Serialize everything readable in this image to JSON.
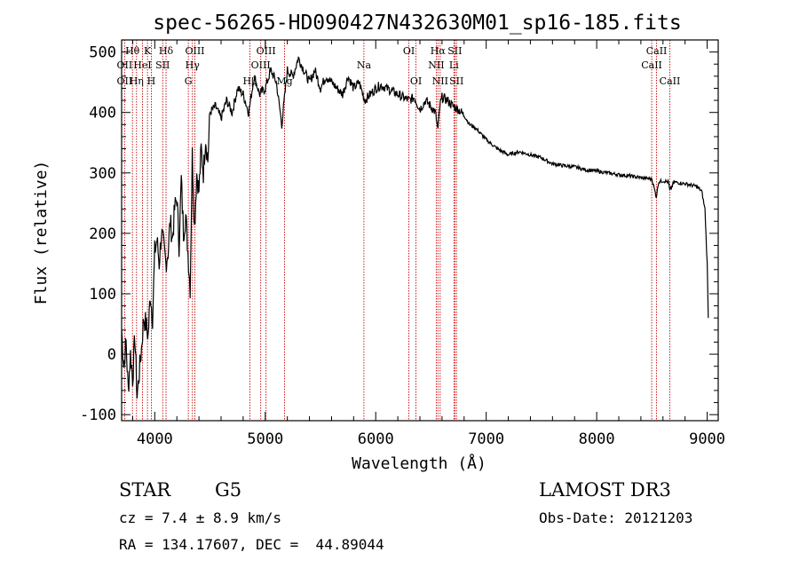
{
  "chart_data": {
    "type": "line",
    "title": "spec-56265-HD090427N432630M01_sp16-185.fits",
    "xlabel": "Wavelength (Å)",
    "ylabel": "Flux (relative)",
    "xlim": [
      3700,
      9100
    ],
    "ylim": [
      -110,
      520
    ],
    "x_ticks": [
      4000,
      5000,
      6000,
      7000,
      8000,
      9000
    ],
    "y_ticks": [
      -100,
      0,
      100,
      200,
      300,
      400,
      500
    ],
    "grid": false,
    "series": [
      {
        "x": [
          3700,
          3720,
          3740,
          3760,
          3780,
          3800,
          3820,
          3840,
          3860,
          3880,
          3900,
          3920,
          3940,
          3960,
          3980,
          4000,
          4020,
          4040,
          4060,
          4080,
          4100,
          4120,
          4140,
          4160,
          4180,
          4200,
          4220,
          4240,
          4260,
          4280,
          4300,
          4320,
          4340,
          4360,
          4380,
          4400,
          4420,
          4440,
          4460,
          4480,
          4500,
          4550,
          4600,
          4650,
          4700,
          4750,
          4800,
          4850,
          4900,
          4950,
          5000,
          5050,
          5100,
          5150,
          5200,
          5250,
          5300,
          5350,
          5400,
          5450,
          5500,
          5550,
          5600,
          5650,
          5700,
          5750,
          5800,
          5850,
          5900,
          5950,
          6000,
          6050,
          6100,
          6150,
          6200,
          6250,
          6300,
          6350,
          6400,
          6450,
          6500,
          6540,
          6563,
          6580,
          6600,
          6650,
          6700,
          6750,
          6800,
          6850,
          6900,
          6950,
          7000,
          7100,
          7200,
          7300,
          7400,
          7500,
          7600,
          7700,
          7800,
          7900,
          8000,
          8100,
          8200,
          8300,
          8400,
          8500,
          8540,
          8560,
          8600,
          8650,
          8662,
          8700,
          8800,
          8900,
          8950,
          8980,
          9000,
          9010
        ],
        "y": [
          40,
          -20,
          20,
          -60,
          0,
          -40,
          30,
          -70,
          -30,
          10,
          60,
          50,
          30,
          100,
          60,
          170,
          190,
          150,
          200,
          180,
          150,
          170,
          220,
          190,
          240,
          260,
          180,
          290,
          200,
          230,
          170,
          110,
          330,
          210,
          300,
          270,
          340,
          300,
          360,
          320,
          400,
          410,
          390,
          420,
          400,
          440,
          430,
          400,
          460,
          430,
          440,
          470,
          450,
          380,
          470,
          460,
          490,
          470,
          450,
          470,
          440,
          460,
          450,
          440,
          430,
          460,
          440,
          450,
          420,
          430,
          440,
          445,
          440,
          435,
          430,
          425,
          420,
          425,
          405,
          420,
          410,
          400,
          370,
          410,
          425,
          420,
          410,
          405,
          395,
          380,
          375,
          365,
          355,
          340,
          330,
          335,
          330,
          325,
          315,
          312,
          310,
          305,
          303,
          300,
          297,
          295,
          292,
          290,
          260,
          285,
          287,
          285,
          270,
          285,
          282,
          278,
          270,
          240,
          150,
          60
        ]
      }
    ],
    "lines": [
      {
        "x": 3727,
        "labels": [
          {
            "text": "OII",
            "row": 2
          },
          {
            "text": "OII",
            "row": 3
          }
        ]
      },
      {
        "x": 3798,
        "labels": [
          {
            "text": "Hθ",
            "row": 1
          }
        ]
      },
      {
        "x": 3835,
        "labels": [
          {
            "text": "Hη",
            "row": 3
          }
        ]
      },
      {
        "x": 3889,
        "labels": [
          {
            "text": "HeI",
            "row": 2
          }
        ]
      },
      {
        "x": 3934,
        "labels": [
          {
            "text": "K",
            "row": 1
          }
        ]
      },
      {
        "x": 3969,
        "labels": [
          {
            "text": "H",
            "row": 3
          }
        ]
      },
      {
        "x": 4072,
        "labels": [
          {
            "text": "SII",
            "row": 2
          }
        ]
      },
      {
        "x": 4102,
        "labels": [
          {
            "text": "Hδ",
            "row": 1
          }
        ]
      },
      {
        "x": 4304,
        "labels": [
          {
            "text": "G",
            "row": 3
          }
        ]
      },
      {
        "x": 4341,
        "labels": [
          {
            "text": "Hγ",
            "row": 2
          }
        ]
      },
      {
        "x": 4363,
        "labels": [
          {
            "text": "OIII",
            "row": 1
          }
        ]
      },
      {
        "x": 4861,
        "labels": [
          {
            "text": "Hβ",
            "row": 3
          }
        ]
      },
      {
        "x": 4959,
        "labels": [
          {
            "text": "OIII",
            "row": 2
          }
        ]
      },
      {
        "x": 5007,
        "labels": [
          {
            "text": "OIII",
            "row": 1
          }
        ]
      },
      {
        "x": 5175,
        "labels": [
          {
            "text": "Mg",
            "row": 3
          }
        ]
      },
      {
        "x": 5893,
        "labels": [
          {
            "text": "Na",
            "row": 2
          }
        ]
      },
      {
        "x": 6300,
        "labels": [
          {
            "text": "OI",
            "row": 1
          }
        ]
      },
      {
        "x": 6364,
        "labels": [
          {
            "text": "OI",
            "row": 3
          }
        ]
      },
      {
        "x": 6548,
        "labels": [
          {
            "text": "NII",
            "row": 2
          }
        ]
      },
      {
        "x": 6563,
        "labels": [
          {
            "text": "Hα",
            "row": 1
          }
        ]
      },
      {
        "x": 6583,
        "labels": [
          {
            "text": "NII",
            "row": 3
          }
        ]
      },
      {
        "x": 6708,
        "labels": [
          {
            "text": "Li",
            "row": 2
          }
        ]
      },
      {
        "x": 6716,
        "labels": [
          {
            "text": "SII",
            "row": 1
          }
        ]
      },
      {
        "x": 6731,
        "labels": [
          {
            "text": "SII",
            "row": 3
          }
        ]
      },
      {
        "x": 8498,
        "labels": [
          {
            "text": "CaII",
            "row": 2
          }
        ]
      },
      {
        "x": 8542,
        "labels": [
          {
            "text": "CaII",
            "row": 1
          }
        ]
      },
      {
        "x": 8662,
        "labels": [
          {
            "text": "CaII",
            "row": 3
          }
        ]
      }
    ],
    "colors": {
      "spectrum": "#000000",
      "lines": "#cc0000"
    }
  },
  "info": {
    "class_label": "STAR",
    "subclass": "G5",
    "cz": "cz = 7.4 ± 8.9 km/s",
    "coords": "RA = 134.17607, DEC =  44.89044",
    "survey": "LAMOST DR3",
    "obs_date": "Obs-Date: 20121203"
  }
}
